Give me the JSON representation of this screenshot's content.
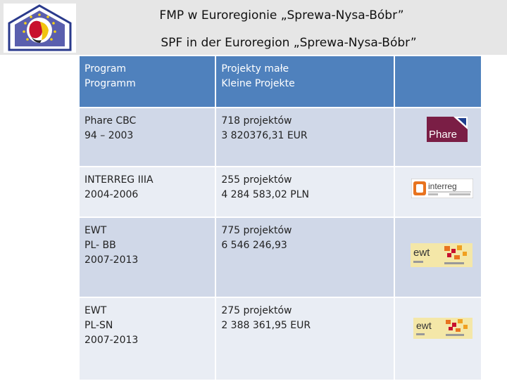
{
  "header": {
    "title_pl": "FMP w Euroregionie „Sprewa-Nysa-Bóbr”",
    "title_de": "SPF  in der Euroregion „Sprewa-Nysa-Bóbr”"
  },
  "colors": {
    "header_row": "#4f81bd",
    "row_dark": "#d0d8e8",
    "row_light": "#e9edf4"
  },
  "table": {
    "header": {
      "col1": [
        "Program",
        "Programm"
      ],
      "col2": [
        "Projekty małe",
        "Kleine Projekte"
      ]
    },
    "rows": [
      {
        "program": [
          "Phare CBC",
          "94 – 2003"
        ],
        "projects": [
          "718 projektów",
          "3 820376,31 EUR"
        ],
        "logo": "Phare",
        "logo_name": "phare-logo"
      },
      {
        "program": [
          "INTERREG IIIA",
          "2004-2006"
        ],
        "projects": [
          "255 projektów",
          "4 284 583,02 PLN"
        ],
        "logo": "interreg",
        "logo_name": "interreg-logo"
      },
      {
        "program": [
          "EWT",
          "PL- BB",
          "2007-2013"
        ],
        "projects": [
          "775 projektów",
          "6 546 246,93"
        ],
        "logo": "ewt",
        "logo_name": "ewt-logo"
      },
      {
        "program": [
          "EWT",
          "PL-SN",
          "2007-2013"
        ],
        "projects": [
          "275 projektów",
          "2 388 361,95 EUR"
        ],
        "logo": "ewt",
        "logo_name": "ewt-logo"
      }
    ]
  }
}
